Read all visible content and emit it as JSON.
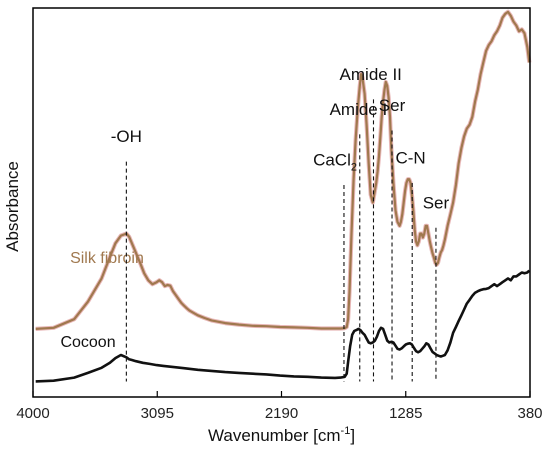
{
  "chart_data": {
    "type": "line",
    "title": "",
    "xlabel": "Wavenumber [cm",
    "xlabel_sup": "-1",
    "xlabel_end": "]",
    "ylabel": "Absorbance",
    "x_reversed": true,
    "xlim": [
      4000,
      380
    ],
    "ylim": [
      0,
      1
    ],
    "ticks": [
      "4000",
      "3095",
      "2190",
      "1285",
      "380"
    ],
    "tick_values": [
      4000,
      3095,
      2190,
      1285,
      380
    ],
    "grid": false,
    "series": [
      {
        "name": "Silk fibroin",
        "color": "#a0784e",
        "outline_color": "#e8b8b8",
        "x": [
          3980,
          3850,
          3700,
          3600,
          3500,
          3440,
          3400,
          3360,
          3320,
          3300,
          3280,
          3250,
          3220,
          3190,
          3160,
          3130,
          3100,
          3080,
          3060,
          3040,
          3020,
          3000,
          2980,
          2960,
          2940,
          2920,
          2900,
          2880,
          2860,
          2840,
          2800,
          2750,
          2700,
          2600,
          2500,
          2400,
          2300,
          2200,
          2100,
          2000,
          1900,
          1800,
          1760,
          1730,
          1715,
          1705,
          1695,
          1680,
          1665,
          1650,
          1635,
          1620,
          1610,
          1600,
          1585,
          1570,
          1555,
          1540,
          1525,
          1515,
          1500,
          1490,
          1480,
          1470,
          1460,
          1450,
          1440,
          1430,
          1420,
          1410,
          1400,
          1390,
          1375,
          1360,
          1345,
          1330,
          1320,
          1310,
          1300,
          1290,
          1280,
          1270,
          1260,
          1250,
          1240,
          1230,
          1220,
          1210,
          1200,
          1190,
          1180,
          1170,
          1160,
          1150,
          1140,
          1130,
          1120,
          1110,
          1100,
          1090,
          1080,
          1070,
          1060,
          1050,
          1040,
          1030,
          1020,
          1010,
          1000,
          980,
          960,
          940,
          920,
          900,
          880,
          860,
          840,
          820,
          800,
          780,
          760,
          740,
          720,
          700,
          680,
          660,
          640,
          620,
          600,
          580,
          560,
          540,
          520,
          500,
          480,
          460,
          440,
          420,
          400,
          385
        ],
        "y": [
          0.175,
          0.178,
          0.2,
          0.245,
          0.305,
          0.36,
          0.395,
          0.415,
          0.42,
          0.412,
          0.395,
          0.37,
          0.345,
          0.318,
          0.3,
          0.29,
          0.295,
          0.3,
          0.295,
          0.285,
          0.288,
          0.286,
          0.272,
          0.262,
          0.252,
          0.242,
          0.235,
          0.228,
          0.222,
          0.218,
          0.21,
          0.203,
          0.197,
          0.19,
          0.186,
          0.183,
          0.182,
          0.18,
          0.179,
          0.178,
          0.176,
          0.176,
          0.176,
          0.177,
          0.18,
          0.2,
          0.27,
          0.42,
          0.56,
          0.66,
          0.74,
          0.8,
          0.83,
          0.82,
          0.78,
          0.7,
          0.6,
          0.52,
          0.5,
          0.52,
          0.55,
          0.58,
          0.62,
          0.67,
          0.72,
          0.76,
          0.79,
          0.81,
          0.8,
          0.77,
          0.72,
          0.64,
          0.55,
          0.48,
          0.45,
          0.44,
          0.45,
          0.47,
          0.5,
          0.53,
          0.55,
          0.56,
          0.56,
          0.55,
          0.52,
          0.48,
          0.43,
          0.4,
          0.39,
          0.4,
          0.42,
          0.42,
          0.41,
          0.42,
          0.44,
          0.44,
          0.42,
          0.4,
          0.385,
          0.37,
          0.358,
          0.345,
          0.34,
          0.345,
          0.36,
          0.372,
          0.378,
          0.39,
          0.405,
          0.44,
          0.47,
          0.5,
          0.545,
          0.6,
          0.64,
          0.67,
          0.69,
          0.7,
          0.72,
          0.76,
          0.79,
          0.83,
          0.86,
          0.89,
          0.905,
          0.915,
          0.93,
          0.94,
          0.955,
          0.975,
          0.985,
          0.99,
          0.98,
          0.965,
          0.955,
          0.94,
          0.945,
          0.935,
          0.9,
          0.86
        ]
      },
      {
        "name": "Cocoon",
        "color": "#111111",
        "x": [
          3980,
          3850,
          3700,
          3600,
          3500,
          3440,
          3400,
          3360,
          3320,
          3300,
          3280,
          3250,
          3200,
          3150,
          3100,
          3050,
          3000,
          2950,
          2900,
          2800,
          2700,
          2600,
          2500,
          2400,
          2300,
          2200,
          2100,
          2000,
          1900,
          1800,
          1760,
          1730,
          1715,
          1705,
          1690,
          1675,
          1660,
          1645,
          1630,
          1615,
          1600,
          1585,
          1570,
          1555,
          1540,
          1525,
          1510,
          1495,
          1480,
          1465,
          1450,
          1435,
          1420,
          1405,
          1390,
          1375,
          1360,
          1345,
          1330,
          1315,
          1300,
          1285,
          1270,
          1255,
          1240,
          1225,
          1210,
          1195,
          1180,
          1165,
          1150,
          1135,
          1120,
          1105,
          1090,
          1075,
          1060,
          1045,
          1030,
          1015,
          1000,
          980,
          960,
          940,
          920,
          900,
          880,
          860,
          840,
          820,
          800,
          780,
          760,
          740,
          720,
          700,
          680,
          660,
          640,
          620,
          600,
          580,
          560,
          540,
          520,
          500,
          480,
          460,
          440,
          420,
          400,
          385
        ],
        "y": [
          0.04,
          0.042,
          0.05,
          0.062,
          0.075,
          0.088,
          0.1,
          0.108,
          0.102,
          0.097,
          0.095,
          0.092,
          0.088,
          0.085,
          0.082,
          0.08,
          0.078,
          0.076,
          0.074,
          0.07,
          0.067,
          0.064,
          0.062,
          0.06,
          0.058,
          0.055,
          0.053,
          0.052,
          0.05,
          0.049,
          0.05,
          0.052,
          0.06,
          0.09,
          0.13,
          0.16,
          0.17,
          0.172,
          0.175,
          0.172,
          0.165,
          0.16,
          0.15,
          0.14,
          0.138,
          0.14,
          0.145,
          0.155,
          0.17,
          0.178,
          0.175,
          0.16,
          0.145,
          0.14,
          0.142,
          0.14,
          0.132,
          0.124,
          0.122,
          0.125,
          0.13,
          0.135,
          0.137,
          0.138,
          0.135,
          0.126,
          0.118,
          0.115,
          0.118,
          0.124,
          0.13,
          0.138,
          0.135,
          0.125,
          0.116,
          0.112,
          0.108,
          0.106,
          0.104,
          0.106,
          0.108,
          0.12,
          0.14,
          0.165,
          0.18,
          0.195,
          0.21,
          0.225,
          0.24,
          0.25,
          0.26,
          0.268,
          0.272,
          0.275,
          0.277,
          0.278,
          0.28,
          0.285,
          0.29,
          0.285,
          0.29,
          0.295,
          0.3,
          0.305,
          0.3,
          0.31,
          0.31,
          0.315,
          0.32,
          0.318,
          0.32,
          0.325
        ]
      }
    ],
    "series_labels": [
      {
        "text": "Silk fibroin",
        "x": 3730,
        "y": 0.345,
        "color": "#a0784e"
      },
      {
        "text": "Cocoon",
        "x": 3800,
        "y": 0.128,
        "color": "#111111"
      }
    ],
    "annotations": [
      {
        "text": "-OH",
        "x": 3320,
        "x_line": 3320,
        "y_text": 0.655,
        "y_line_top": 0.605,
        "y_line_bottom": 0.04
      },
      {
        "text": "CaCl",
        "sub": "2",
        "x": 1800,
        "x_line": 1735,
        "y_text": 0.595,
        "y_line_top": 0.545,
        "y_line_bottom": 0.04
      },
      {
        "text": "Amide I",
        "x": 1630,
        "x_line": 1620,
        "y_text": 0.725,
        "y_line_top": 0.675,
        "y_line_bottom": 0.04
      },
      {
        "text": "Amide II",
        "x": 1540,
        "x_line": 1520,
        "y_text": 0.815,
        "y_line_top": 0.765,
        "y_line_bottom": 0.04
      },
      {
        "text": "Ser",
        "x": 1385,
        "x_line": 1385,
        "y_text": 0.735,
        "y_line_top": 0.685,
        "y_line_bottom": 0.04
      },
      {
        "text": "C-N",
        "x": 1250,
        "x_line": 1238,
        "y_text": 0.6,
        "y_line_top": 0.55,
        "y_line_bottom": 0.04
      },
      {
        "text": "Ser",
        "x": 1065,
        "x_line": 1065,
        "y_text": 0.485,
        "y_line_top": 0.435,
        "y_line_bottom": 0.04
      }
    ]
  }
}
